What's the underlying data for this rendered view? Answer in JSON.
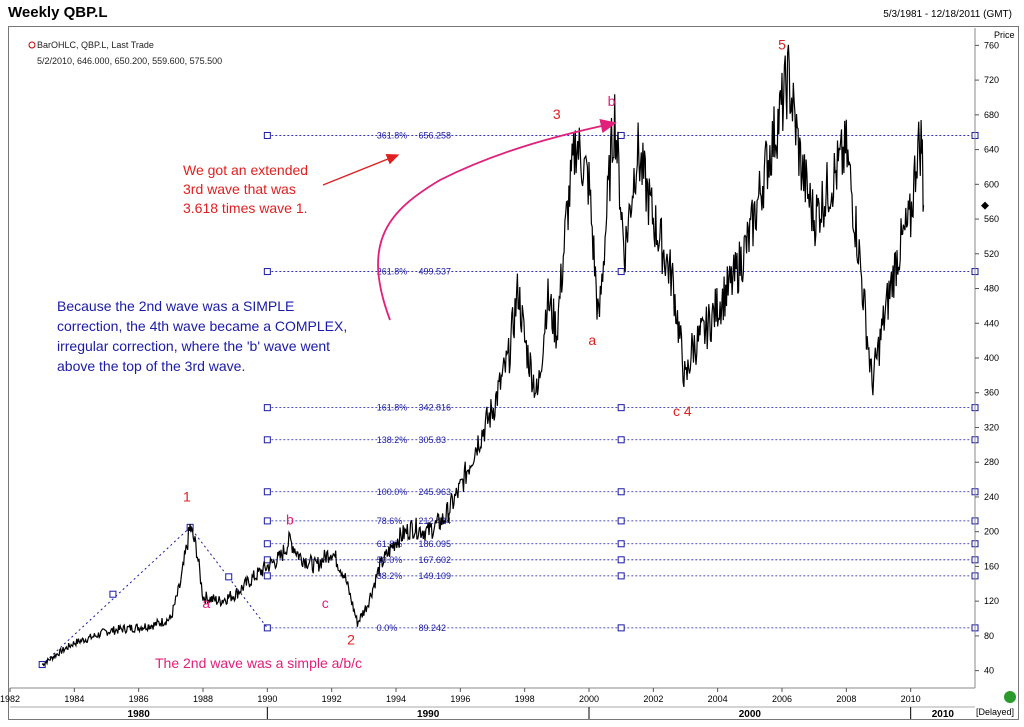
{
  "header": {
    "title": "Weekly QBP.L",
    "date_range": "5/3/1981 - 12/18/2011 (GMT)",
    "price_label": "Price",
    "delayed": "[Delayed]"
  },
  "legend": {
    "series": "BarOHLC, QBP.L, Last Trade",
    "values": "5/2/2010, 646.000, 650.200, 559.600, 575.500"
  },
  "colors": {
    "price": "#000000",
    "fib": "#1a1aa6",
    "red": "#e02020",
    "magenta": "#e0207a",
    "navy": "#1a1aa6",
    "grid": "#c8c8c8"
  },
  "chart_data": {
    "type": "line",
    "title": "Weekly QBP.L",
    "xlim": [
      1982,
      2012
    ],
    "ylim": [
      20,
      780
    ],
    "y_ticks": [
      40,
      80,
      120,
      160,
      200,
      240,
      280,
      320,
      360,
      400,
      440,
      480,
      520,
      560,
      600,
      640,
      680,
      720,
      760
    ],
    "x_ticks": [
      1982,
      1984,
      1986,
      1988,
      1990,
      1992,
      1994,
      1996,
      1998,
      2000,
      2002,
      2004,
      2006,
      2008,
      2010
    ],
    "decades": [
      {
        "label": "1980",
        "x": 1986
      },
      {
        "label": "1990",
        "x": 1995
      },
      {
        "label": "2000",
        "x": 2005
      },
      {
        "label": "2010",
        "x": 2011
      }
    ],
    "last_price": 575.5,
    "series": [
      {
        "values": [
          [
            1983.0,
            47
          ],
          [
            1983.5,
            60
          ],
          [
            1984.0,
            72
          ],
          [
            1984.5,
            78
          ],
          [
            1985.0,
            85
          ],
          [
            1985.5,
            88
          ],
          [
            1986.0,
            90
          ],
          [
            1986.5,
            93
          ],
          [
            1987.0,
            100
          ],
          [
            1987.3,
            140
          ],
          [
            1987.6,
            205
          ],
          [
            1987.8,
            180
          ],
          [
            1988.0,
            125
          ],
          [
            1988.5,
            120
          ],
          [
            1989.0,
            128
          ],
          [
            1989.5,
            145
          ],
          [
            1990.0,
            160
          ],
          [
            1990.4,
            170
          ],
          [
            1990.7,
            190
          ],
          [
            1991.0,
            172
          ],
          [
            1991.5,
            160
          ],
          [
            1992.0,
            178
          ],
          [
            1992.4,
            150
          ],
          [
            1992.8,
            95
          ],
          [
            1993.1,
            115
          ],
          [
            1993.5,
            160
          ],
          [
            1994.0,
            190
          ],
          [
            1994.5,
            205
          ],
          [
            1995.0,
            200
          ],
          [
            1995.5,
            215
          ],
          [
            1996.0,
            250
          ],
          [
            1996.5,
            300
          ],
          [
            1997.0,
            340
          ],
          [
            1997.5,
            400
          ],
          [
            1997.8,
            480
          ],
          [
            1998.0,
            420
          ],
          [
            1998.4,
            355
          ],
          [
            1998.7,
            470
          ],
          [
            1999.0,
            430
          ],
          [
            1999.3,
            560
          ],
          [
            1999.6,
            650
          ],
          [
            2000.0,
            600
          ],
          [
            2000.3,
            440
          ],
          [
            2000.7,
            640
          ],
          [
            2000.8,
            680
          ],
          [
            2001.1,
            520
          ],
          [
            2001.5,
            640
          ],
          [
            2002.0,
            560
          ],
          [
            2002.6,
            490
          ],
          [
            2003.0,
            370
          ],
          [
            2003.2,
            410
          ],
          [
            2003.6,
            430
          ],
          [
            2004.0,
            460
          ],
          [
            2004.5,
            490
          ],
          [
            2005.0,
            540
          ],
          [
            2005.5,
            620
          ],
          [
            2006.0,
            690
          ],
          [
            2006.2,
            725
          ],
          [
            2006.6,
            620
          ],
          [
            2007.0,
            560
          ],
          [
            2007.5,
            600
          ],
          [
            2008.0,
            640
          ],
          [
            2008.4,
            520
          ],
          [
            2008.8,
            370
          ],
          [
            2009.2,
            450
          ],
          [
            2009.6,
            520
          ],
          [
            2010.0,
            560
          ],
          [
            2010.2,
            640
          ],
          [
            2010.35,
            650
          ],
          [
            2010.4,
            576
          ]
        ]
      }
    ]
  },
  "fib_lines": [
    {
      "label": "0.0%",
      "value": 89.242,
      "value_text": "89.242"
    },
    {
      "label": "38.2%",
      "value": 149.109,
      "value_text": "149.109"
    },
    {
      "label": "50.0%",
      "value": 167.602,
      "value_text": "167.602"
    },
    {
      "label": "61.8%",
      "value": 186.095,
      "value_text": "186.095"
    },
    {
      "label": "78.6%",
      "value": 212.424,
      "value_text": "212.424"
    },
    {
      "label": "100.0%",
      "value": 245.963,
      "value_text": "245.963"
    },
    {
      "label": "138.2%",
      "value": 305.83,
      "value_text": "305.83"
    },
    {
      "label": "161.8%",
      "value": 342.816,
      "value_text": "342.816"
    },
    {
      "label": "261.8%",
      "value": 499.537,
      "value_text": "499.537"
    },
    {
      "label": "361.8%",
      "value": 656.258,
      "value_text": "656.258"
    }
  ],
  "wave_labels": [
    {
      "text": "1",
      "x": 1987.5,
      "y": 235,
      "color": "red"
    },
    {
      "text": "2",
      "x": 1992.6,
      "y": 70,
      "color": "red"
    },
    {
      "text": "3",
      "x": 1999.0,
      "y": 675,
      "color": "red"
    },
    {
      "text": "5",
      "x": 2006.0,
      "y": 755,
      "color": "red"
    },
    {
      "text": "c 4",
      "x": 2002.9,
      "y": 333,
      "color": "red"
    },
    {
      "text": "a",
      "x": 2000.1,
      "y": 415,
      "color": "red"
    },
    {
      "text": "b",
      "x": 2000.7,
      "y": 690,
      "color": "magenta"
    },
    {
      "text": "a",
      "x": 1988.1,
      "y": 112,
      "color": "magenta"
    },
    {
      "text": "b",
      "x": 1990.7,
      "y": 208,
      "color": "magenta"
    },
    {
      "text": "c",
      "x": 1991.8,
      "y": 112,
      "color": "magenta"
    }
  ],
  "annotations": {
    "extended": [
      "We got an extended",
      "3rd wave that was",
      "3.618 times wave 1."
    ],
    "complex": [
      "Because the 2nd wave was a SIMPLE",
      "correction, the 4th wave became a COMPLEX,",
      "irregular correction, where the 'b' wave went",
      "above the top of the 3rd wave."
    ],
    "simple": "The 2nd wave was a simple a/b/c"
  }
}
